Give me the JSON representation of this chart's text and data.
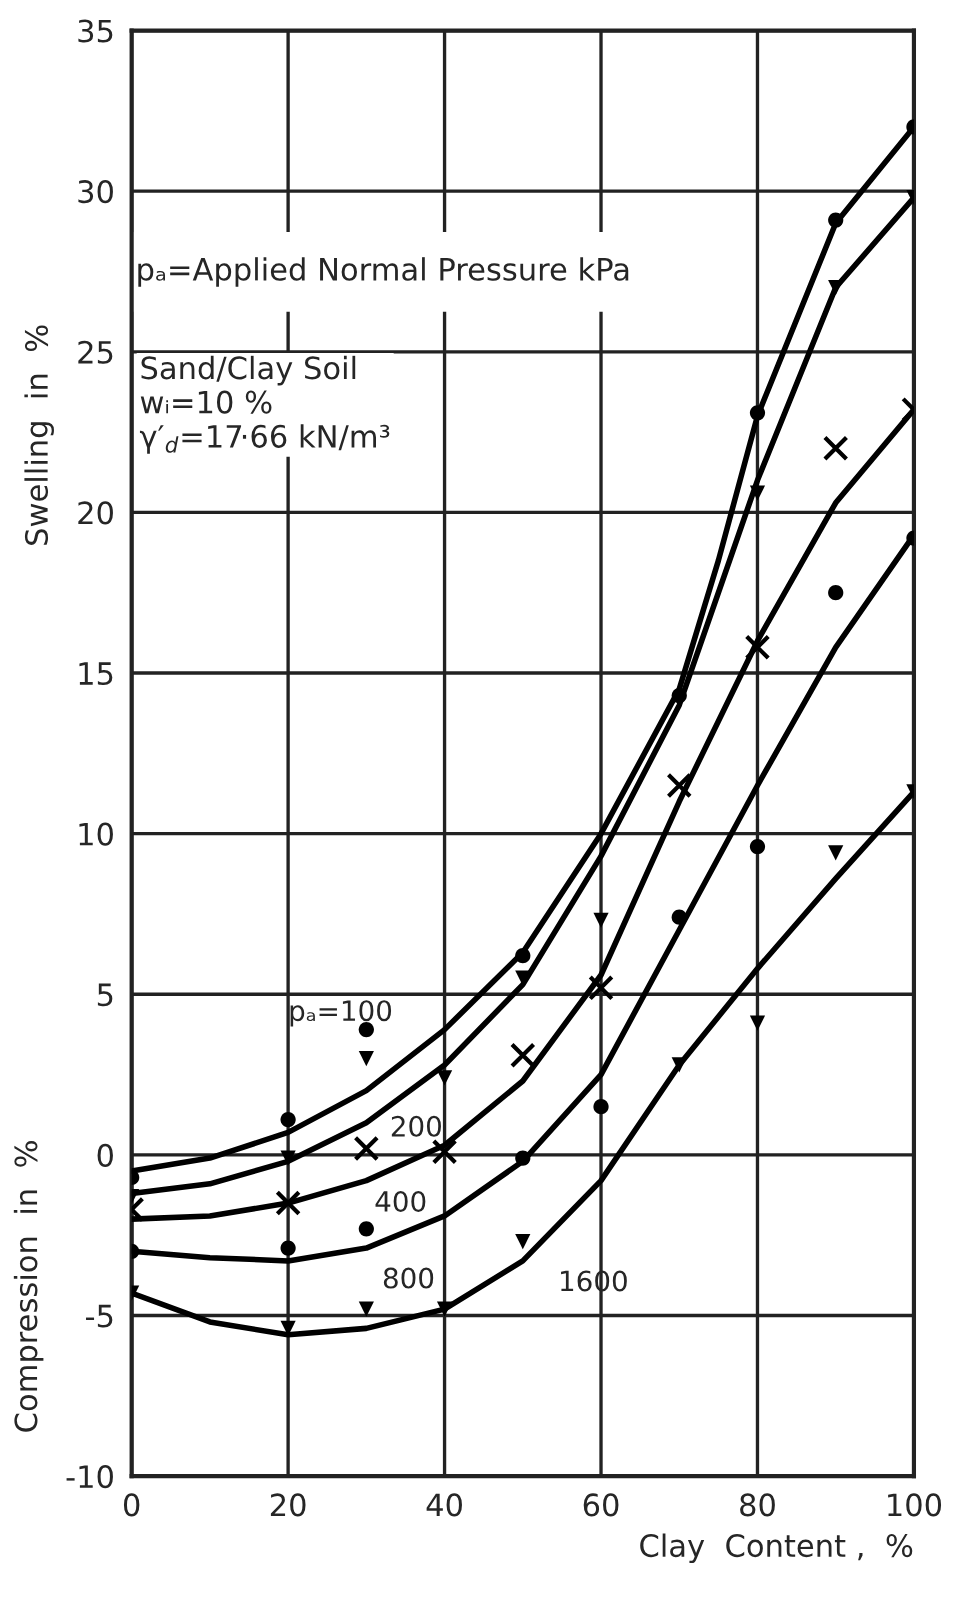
{
  "chart_data": {
    "type": "line",
    "xlabel": "Clay  Content ,  %",
    "ylabel": "Swelling  in  %",
    "xlim": [
      0,
      100
    ],
    "ylim": [
      -10,
      35
    ],
    "xticks": [
      0,
      20,
      40,
      60,
      80,
      100
    ],
    "yticks": [
      -10,
      -5,
      0,
      5,
      10,
      15,
      20,
      25,
      30,
      35
    ],
    "grid": true,
    "legend": false,
    "series": [
      {
        "color": "#000000",
        "marker": "none",
        "line_style": "solid",
        "x": [
          0,
          10,
          20,
          30,
          40,
          50,
          60,
          70,
          75,
          80,
          90,
          100
        ],
        "values": [
          -0.5,
          -0.1,
          0.7,
          2.0,
          3.9,
          6.3,
          10.0,
          14.5,
          18.5,
          23.0,
          29.0,
          32.0
        ]
      },
      {
        "color": "#000000",
        "marker": "none",
        "line_style": "solid",
        "x": [
          0,
          10,
          20,
          30,
          40,
          50,
          60,
          70,
          75,
          80,
          90,
          100
        ],
        "values": [
          -1.2,
          -0.9,
          -0.2,
          1.0,
          2.8,
          5.3,
          9.3,
          14.0,
          17.5,
          21.0,
          27.0,
          29.8
        ]
      },
      {
        "color": "#000000",
        "marker": "none",
        "line_style": "solid",
        "x": [
          0,
          10,
          20,
          30,
          40,
          50,
          60,
          70,
          75,
          80,
          90,
          100
        ],
        "values": [
          -2.0,
          -1.9,
          -1.5,
          -0.8,
          0.3,
          2.3,
          5.6,
          11.0,
          13.5,
          16.0,
          20.3,
          23.2
        ]
      },
      {
        "color": "#000000",
        "marker": "none",
        "line_style": "solid",
        "x": [
          0,
          10,
          20,
          30,
          40,
          50,
          60,
          70,
          80,
          90,
          100
        ],
        "values": [
          -3.0,
          -3.2,
          -3.3,
          -2.9,
          -1.9,
          -0.2,
          2.5,
          7.0,
          11.5,
          15.8,
          19.3
        ]
      },
      {
        "color": "#000000",
        "marker": "none",
        "line_style": "solid",
        "x": [
          0,
          10,
          20,
          30,
          40,
          50,
          60,
          70,
          80,
          90,
          100
        ],
        "values": [
          -4.3,
          -5.2,
          -5.6,
          -5.4,
          -4.8,
          -3.3,
          -0.8,
          2.8,
          5.8,
          8.6,
          11.3
        ]
      },
      {
        "type": "scatter",
        "color": "#000000",
        "marker": "circle",
        "x": [
          0,
          20,
          30,
          50,
          70,
          80,
          90,
          100
        ],
        "values": [
          -0.7,
          1.1,
          3.9,
          6.2,
          14.3,
          23.1,
          29.1,
          32.0
        ]
      },
      {
        "type": "scatter",
        "color": "#000000",
        "marker": "triangle",
        "x": [
          0,
          20,
          30,
          40,
          50,
          60,
          80,
          90,
          100
        ],
        "values": [
          -1.3,
          -0.1,
          3.0,
          2.4,
          5.5,
          7.3,
          20.6,
          27.0,
          29.8
        ]
      },
      {
        "type": "scatter",
        "color": "#000000",
        "marker": "cross",
        "x": [
          0,
          20,
          30,
          40,
          50,
          60,
          70,
          80,
          90,
          100
        ],
        "values": [
          -1.7,
          -1.5,
          0.2,
          0.1,
          3.1,
          5.2,
          11.5,
          15.8,
          22.0,
          23.2
        ]
      },
      {
        "type": "scatter",
        "color": "#000000",
        "marker": "circle",
        "x": [
          0,
          20,
          30,
          50,
          60,
          70,
          80,
          90,
          100
        ],
        "values": [
          -3.0,
          -2.9,
          -2.3,
          -0.1,
          1.5,
          7.4,
          9.6,
          17.5,
          19.2
        ]
      },
      {
        "type": "scatter",
        "color": "#000000",
        "marker": "triangle",
        "x": [
          0,
          20,
          30,
          40,
          50,
          70,
          80,
          90,
          100
        ],
        "values": [
          -4.3,
          -5.4,
          -4.8,
          -4.8,
          -2.7,
          2.8,
          4.1,
          9.4,
          11.3
        ]
      }
    ],
    "annotations": [
      "pₐ=100",
      "200",
      "400",
      "800",
      "1600",
      "pₐ=Applied Normal Pressure kPa",
      "Sand/Clay Soil\nwᵢ=10 %\nγ′$_{d}$=17·66 kN/m³",
      "Compression  in  %"
    ]
  }
}
